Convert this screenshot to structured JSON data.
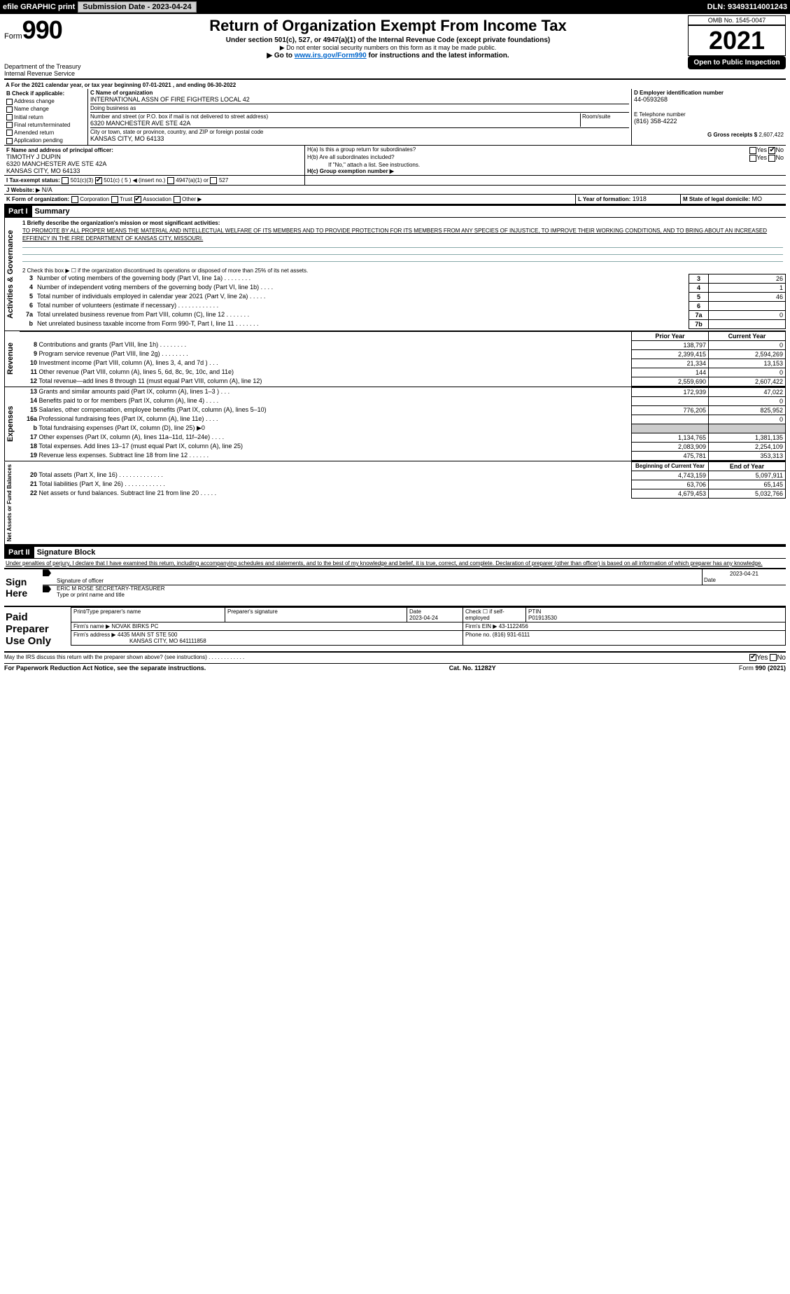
{
  "topbar": {
    "efile": "efile GRAPHIC print",
    "submission_label": "Submission Date - 2023-04-24",
    "dln": "DLN: 93493114001243"
  },
  "header": {
    "form_word": "Form",
    "form_number": "990",
    "title": "Return of Organization Exempt From Income Tax",
    "subtitle": "Under section 501(c), 527, or 4947(a)(1) of the Internal Revenue Code (except private foundations)",
    "warn": "▶ Do not enter social security numbers on this form as it may be made public.",
    "goto_prefix": "▶ Go to ",
    "goto_link": "www.irs.gov/Form990",
    "goto_suffix": " for instructions and the latest information.",
    "dept": "Department of the Treasury",
    "irs": "Internal Revenue Service",
    "omb": "OMB No. 1545-0047",
    "year": "2021",
    "pub_insp": "Open to Public Inspection"
  },
  "period": {
    "line": "For the 2021 calendar year, or tax year beginning 07-01-2021   , and ending 06-30-2022"
  },
  "boxB": {
    "label": "B Check if applicable:",
    "items": [
      "Address change",
      "Name change",
      "Initial return",
      "Final return/terminated",
      "Amended return",
      "Application pending"
    ]
  },
  "boxC": {
    "label": "C Name of organization",
    "name": "INTERNATIONAL ASSN OF FIRE FIGHTERS LOCAL 42",
    "dba_label": "Doing business as",
    "street_label": "Number and street (or P.O. box if mail is not delivered to street address)",
    "room_label": "Room/suite",
    "street": "6320 MANCHESTER AVE STE 42A",
    "city_label": "City or town, state or province, country, and ZIP or foreign postal code",
    "city": "KANSAS CITY, MO  64133"
  },
  "boxD": {
    "label": "D Employer identification number",
    "value": "44-0593268"
  },
  "boxE": {
    "label": "E Telephone number",
    "value": "(816) 358-4222"
  },
  "boxG": {
    "label": "G Gross receipts $",
    "value": "2,607,422"
  },
  "boxF": {
    "label": "F  Name and address of principal officer:",
    "name": "TIMOTHY J DUPIN",
    "street": "6320 MANCHESTER AVE STE 42A",
    "city": "KANSAS CITY, MO  64133"
  },
  "boxH": {
    "a_label": "H(a)  Is this a group return for subordinates?",
    "a_yes": "Yes",
    "a_no": "No",
    "a_checked": "No",
    "b_label": "H(b)  Are all subordinates included?",
    "b_yes": "Yes",
    "b_no": "No",
    "b_note": "If \"No,\" attach a list. See instructions.",
    "c_label": "H(c)  Group exemption number ▶"
  },
  "boxI": {
    "label": "I  Tax-exempt status:",
    "opts": [
      "501(c)(3)",
      "501(c) ( 5 ) ◀ (insert no.)",
      "4947(a)(1) or",
      "527"
    ],
    "checked_index": 1
  },
  "boxJ": {
    "label": "J  Website: ▶",
    "value": "N/A"
  },
  "boxK": {
    "label": "K Form of organization:",
    "opts": [
      "Corporation",
      "Trust",
      "Association",
      "Other ▶"
    ],
    "checked_index": 2
  },
  "boxL": {
    "label": "L Year of formation:",
    "value": "1918"
  },
  "boxM": {
    "label": "M State of legal domicile:",
    "value": "MO"
  },
  "part1": {
    "tag": "Part I",
    "title": "Summary",
    "q1_label": "1  Briefly describe the organization's mission or most significant activities:",
    "q1_text": "TO PROMOTE BY ALL PROPER MEANS THE MATERIAL AND INTELLECTUAL WELFARE OF ITS MEMBERS AND TO PROVIDE PROTECTION FOR ITS MEMBERS FROM ANY SPECIES OF INJUSTICE, TO IMPROVE THEIR WORKING CONDITIONS, AND TO BRING ABOUT AN INCREASED EFFIENCY IN THE FIRE DEPARTMENT OF KANSAS CITY, MISSOURI.",
    "q2": "2   Check this box ▶ ☐  if the organization discontinued its operations or disposed of more than 25% of its net assets.",
    "rows_ag": [
      {
        "n": "3",
        "label": "Number of voting members of the governing body (Part VI, line 1a)   .    .    .    .    .    .    .    .",
        "box": "3",
        "val": "26"
      },
      {
        "n": "4",
        "label": "Number of independent voting members of the governing body (Part VI, line 1b)   .    .    .    .",
        "box": "4",
        "val": "1"
      },
      {
        "n": "5",
        "label": "Total number of individuals employed in calendar year 2021 (Part V, line 2a)   .    .    .    .    .",
        "box": "5",
        "val": "46"
      },
      {
        "n": "6",
        "label": "Total number of volunteers (estimate if necessary)   .    .    .    .    .    .    .    .    .    .    .    .",
        "box": "6",
        "val": ""
      },
      {
        "n": "7a",
        "label": "Total unrelated business revenue from Part VIII, column (C), line 12   .    .    .    .    .    .    .",
        "box": "7a",
        "val": "0"
      },
      {
        "n": "b",
        "label": "Net unrelated business taxable income from Form 990-T, Part I, line 11   .    .    .    .    .    .    .",
        "box": "7b",
        "val": ""
      }
    ],
    "py_label": "Prior Year",
    "cy_label": "Current Year",
    "revenue_rows": [
      {
        "n": "8",
        "label": "Contributions and grants (Part VIII, line 1h)   .    .    .    .    .    .    .    .",
        "py": "138,797",
        "cy": "0"
      },
      {
        "n": "9",
        "label": "Program service revenue (Part VIII, line 2g)   .    .    .    .    .    .    .    .",
        "py": "2,399,415",
        "cy": "2,594,269"
      },
      {
        "n": "10",
        "label": "Investment income (Part VIII, column (A), lines 3, 4, and 7d )   .    .    .",
        "py": "21,334",
        "cy": "13,153"
      },
      {
        "n": "11",
        "label": "Other revenue (Part VIII, column (A), lines 5, 6d, 8c, 9c, 10c, and 11e)",
        "py": "144",
        "cy": "0"
      },
      {
        "n": "12",
        "label": "Total revenue—add lines 8 through 11 (must equal Part VIII, column (A), line 12)",
        "py": "2,559,690",
        "cy": "2,607,422"
      }
    ],
    "expense_rows": [
      {
        "n": "13",
        "label": "Grants and similar amounts paid (Part IX, column (A), lines 1–3 )   .    .    .",
        "py": "172,939",
        "cy": "47,022"
      },
      {
        "n": "14",
        "label": "Benefits paid to or for members (Part IX, column (A), line 4)   .    .    .    .",
        "py": "",
        "cy": "0"
      },
      {
        "n": "15",
        "label": "Salaries, other compensation, employee benefits (Part IX, column (A), lines 5–10)",
        "py": "776,205",
        "cy": "825,952"
      },
      {
        "n": "16a",
        "label": "Professional fundraising fees (Part IX, column (A), line 11e)   .    .    .    .",
        "py": "",
        "cy": "0"
      },
      {
        "n": "b",
        "label": "Total fundraising expenses (Part IX, column (D), line 25) ▶0",
        "py": "",
        "cy": "",
        "shade": true
      },
      {
        "n": "17",
        "label": "Other expenses (Part IX, column (A), lines 11a–11d, 11f–24e)   .    .    .    .",
        "py": "1,134,765",
        "cy": "1,381,135"
      },
      {
        "n": "18",
        "label": "Total expenses. Add lines 13–17 (must equal Part IX, column (A), line 25)",
        "py": "2,083,909",
        "cy": "2,254,109"
      },
      {
        "n": "19",
        "label": "Revenue less expenses. Subtract line 18 from line 12   .    .    .    .    .    .",
        "py": "475,781",
        "cy": "353,313"
      }
    ],
    "by_label": "Beginning of Current Year",
    "ey_label": "End of Year",
    "net_rows": [
      {
        "n": "20",
        "label": "Total assets (Part X, line 16)   .    .    .    .    .    .    .    .    .    .    .    .    .",
        "py": "4,743,159",
        "cy": "5,097,911"
      },
      {
        "n": "21",
        "label": "Total liabilities (Part X, line 26)   .    .    .    .    .    .    .    .    .    .    .    .",
        "py": "63,706",
        "cy": "65,145"
      },
      {
        "n": "22",
        "label": "Net assets or fund balances. Subtract line 21 from line 20   .    .    .    .    .",
        "py": "4,679,453",
        "cy": "5,032,766"
      }
    ]
  },
  "part2": {
    "tag": "Part II",
    "title": "Signature Block",
    "decl": "Under penalties of perjury, I declare that I have examined this return, including accompanying schedules and statements, and to the best of my knowledge and belief, it is true, correct, and complete. Declaration of preparer (other than officer) is based on all information of which preparer has any knowledge."
  },
  "sign": {
    "label": "Sign Here",
    "sig_label": "Signature of officer",
    "date_label": "Date",
    "date": "2023-04-21",
    "name": "ERIC M ROSE  SECRETARY-TREASURER",
    "name_label": "Type or print name and title"
  },
  "preparer": {
    "label": "Paid Preparer Use Only",
    "cols": [
      "Print/Type preparer's name",
      "Preparer's signature",
      "Date",
      "Check ☐ if self-employed",
      "PTIN"
    ],
    "date": "2023-04-24",
    "ptin": "P01913530",
    "firm_name_label": "Firm's name    ▶",
    "firm_name": "NOVAK BIRKS PC",
    "firm_ein_label": "Firm's EIN ▶",
    "firm_ein": "43-1122456",
    "firm_addr_label": "Firm's address ▶",
    "firm_addr1": "4435 MAIN ST STE 500",
    "firm_addr2": "KANSAS CITY, MO  641111858",
    "phone_label": "Phone no.",
    "phone": "(816) 931-6111"
  },
  "discuss": {
    "q": "May the IRS discuss this return with the preparer shown above? (see instructions)   .    .    .    .    .    .    .    .    .    .    .    .",
    "yes": "Yes",
    "no": "No",
    "checked": "Yes"
  },
  "footer": {
    "left": "For Paperwork Reduction Act Notice, see the separate instructions.",
    "mid": "Cat. No. 11282Y",
    "right": "Form 990 (2021)"
  },
  "vtabs": {
    "ag": "Activities & Governance",
    "rev": "Revenue",
    "exp": "Expenses",
    "net": "Net Assets or Fund Balances"
  },
  "colors": {
    "link": "#0066cc",
    "rule": "#8aa"
  }
}
